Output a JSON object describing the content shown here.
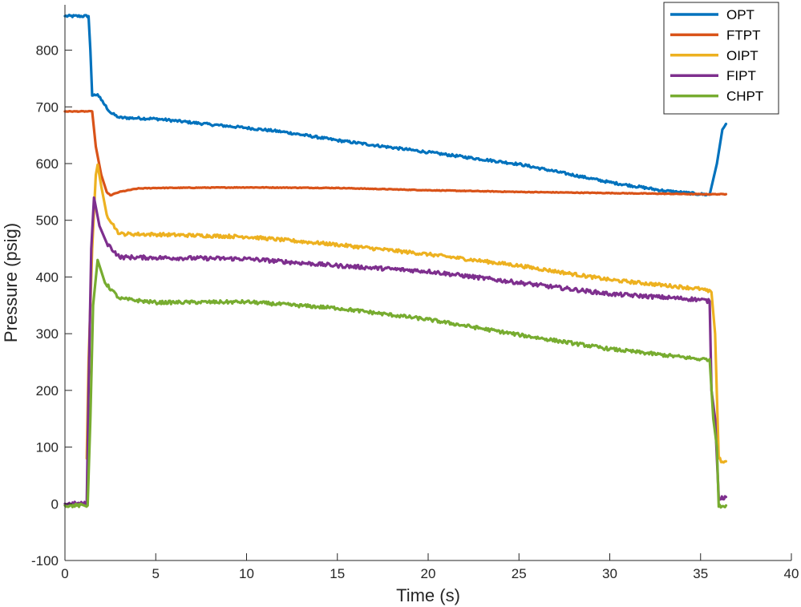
{
  "chart_data": {
    "type": "line",
    "title": "",
    "xlabel": "Time (s)",
    "ylabel": "Pressure (psig)",
    "xlim": [
      0,
      40
    ],
    "ylim": [
      -100,
      880
    ],
    "xticks": [
      0,
      5,
      10,
      15,
      20,
      25,
      30,
      35,
      40
    ],
    "yticks": [
      -100,
      0,
      100,
      200,
      300,
      400,
      500,
      600,
      700,
      800
    ],
    "grid": false,
    "legend_position": "top-right",
    "series": [
      {
        "name": "OPT",
        "color": "#0072BD",
        "points": [
          [
            0,
            860
          ],
          [
            1.3,
            860
          ],
          [
            1.4,
            800
          ],
          [
            1.5,
            720
          ],
          [
            1.8,
            722
          ],
          [
            2.0,
            712
          ],
          [
            2.5,
            690
          ],
          [
            3.0,
            681
          ],
          [
            4.0,
            680
          ],
          [
            5,
            679
          ],
          [
            8,
            669
          ],
          [
            10,
            663
          ],
          [
            12,
            656
          ],
          [
            15,
            641
          ],
          [
            20,
            620
          ],
          [
            25,
            599
          ],
          [
            30,
            567
          ],
          [
            33,
            552
          ],
          [
            35,
            546
          ],
          [
            35.5,
            545
          ],
          [
            35.9,
            600
          ],
          [
            36.2,
            660
          ],
          [
            36.4,
            670
          ]
        ]
      },
      {
        "name": "FTPT",
        "color": "#D95319",
        "points": [
          [
            0,
            692
          ],
          [
            1.5,
            692
          ],
          [
            1.7,
            630
          ],
          [
            2.0,
            580
          ],
          [
            2.3,
            550
          ],
          [
            2.5,
            544
          ],
          [
            3,
            550
          ],
          [
            4,
            556
          ],
          [
            5,
            557
          ],
          [
            10,
            558
          ],
          [
            15,
            557
          ],
          [
            20,
            553
          ],
          [
            25,
            550
          ],
          [
            30,
            548
          ],
          [
            35,
            546
          ],
          [
            36.4,
            546
          ]
        ]
      },
      {
        "name": "OIPT",
        "color": "#EDB120",
        "points": [
          [
            1.2,
            80
          ],
          [
            1.3,
            250
          ],
          [
            1.5,
            450
          ],
          [
            1.7,
            580
          ],
          [
            1.8,
            598
          ],
          [
            2.0,
            560
          ],
          [
            2.3,
            510
          ],
          [
            2.8,
            485
          ],
          [
            3.0,
            476
          ],
          [
            5,
            475
          ],
          [
            10,
            471
          ],
          [
            15,
            457
          ],
          [
            20,
            440
          ],
          [
            25,
            420
          ],
          [
            30,
            395
          ],
          [
            35,
            379
          ],
          [
            35.6,
            373
          ],
          [
            35.8,
            300
          ],
          [
            36.0,
            80
          ],
          [
            36.2,
            74
          ],
          [
            36.4,
            75
          ]
        ]
      },
      {
        "name": "FIPT",
        "color": "#7E2F8E",
        "points": [
          [
            0,
            0
          ],
          [
            1.2,
            0
          ],
          [
            1.3,
            200
          ],
          [
            1.45,
            450
          ],
          [
            1.6,
            540
          ],
          [
            1.9,
            490
          ],
          [
            2.3,
            460
          ],
          [
            3.0,
            435
          ],
          [
            5,
            434
          ],
          [
            10,
            432
          ],
          [
            15,
            420
          ],
          [
            20,
            410
          ],
          [
            25,
            390
          ],
          [
            30,
            370
          ],
          [
            35,
            360
          ],
          [
            35.5,
            357
          ],
          [
            35.6,
            200
          ],
          [
            35.8,
            150
          ],
          [
            36.0,
            10
          ],
          [
            36.4,
            12
          ]
        ]
      },
      {
        "name": "CHPT",
        "color": "#77AC30",
        "points": [
          [
            0,
            -3
          ],
          [
            1.25,
            -3
          ],
          [
            1.4,
            150
          ],
          [
            1.55,
            350
          ],
          [
            1.8,
            430
          ],
          [
            2.2,
            390
          ],
          [
            3.0,
            362
          ],
          [
            5,
            355
          ],
          [
            10,
            356
          ],
          [
            15,
            345
          ],
          [
            20,
            325
          ],
          [
            25,
            298
          ],
          [
            30,
            273
          ],
          [
            35,
            255
          ],
          [
            35.5,
            255
          ],
          [
            35.7,
            150
          ],
          [
            35.9,
            100
          ],
          [
            36.0,
            -5
          ],
          [
            36.4,
            -3
          ]
        ]
      }
    ]
  }
}
